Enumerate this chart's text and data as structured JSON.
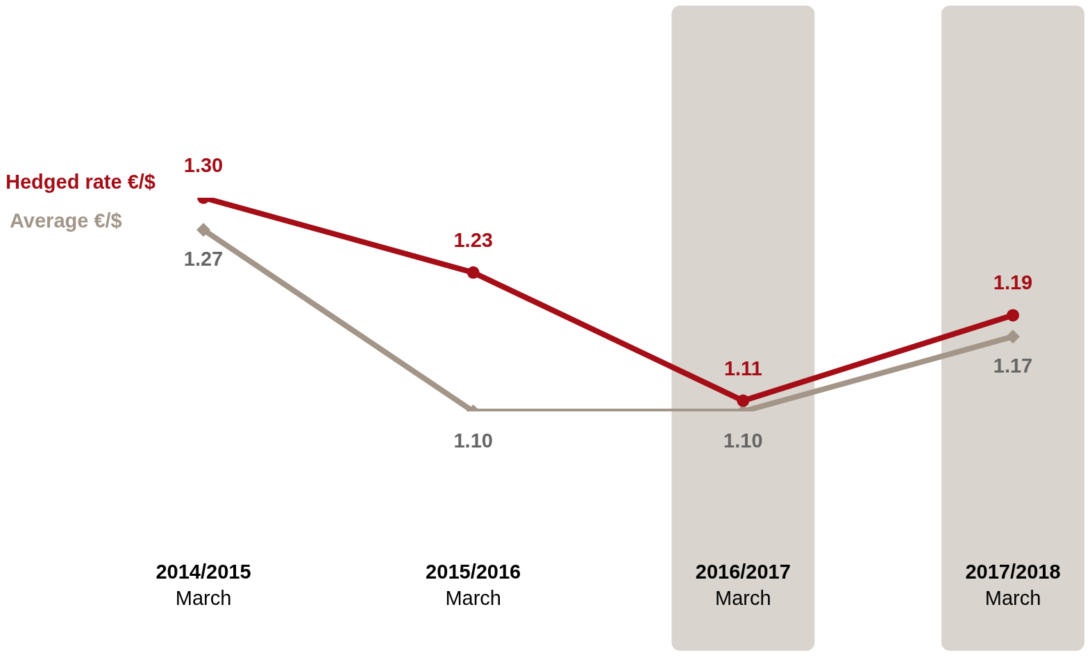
{
  "chart_data": {
    "type": "line",
    "categories": [
      "2014/2015\nMarch",
      "2015/2016\nMarch",
      "2016/2017\nMarch",
      "2017/2018\nMarch"
    ],
    "series": [
      {
        "name": "Hedged rate €/$",
        "color": "#a50d17",
        "marker": "circle",
        "values": [
          1.3,
          1.23,
          1.11,
          1.19
        ],
        "value_labels": [
          "1.30",
          "1.23",
          "1.11",
          "1.19"
        ]
      },
      {
        "name": "Average €/$",
        "color": "#a39689",
        "marker": "diamond",
        "values": [
          1.27,
          1.1,
          1.1,
          1.17
        ],
        "value_labels": [
          "1.27",
          "1.10",
          "1.10",
          "1.17"
        ]
      }
    ],
    "bands": [
      {
        "axis": "x",
        "from": "2016/2017\nMarch",
        "to": "2016/2017\nMarch",
        "color": "#d9d4cd"
      },
      {
        "axis": "x",
        "from": "2017/2018\nMarch",
        "to": "2017/2018\nMarch",
        "color": "#d9d4cd"
      }
    ],
    "legend": "left",
    "line_style": "solid"
  }
}
